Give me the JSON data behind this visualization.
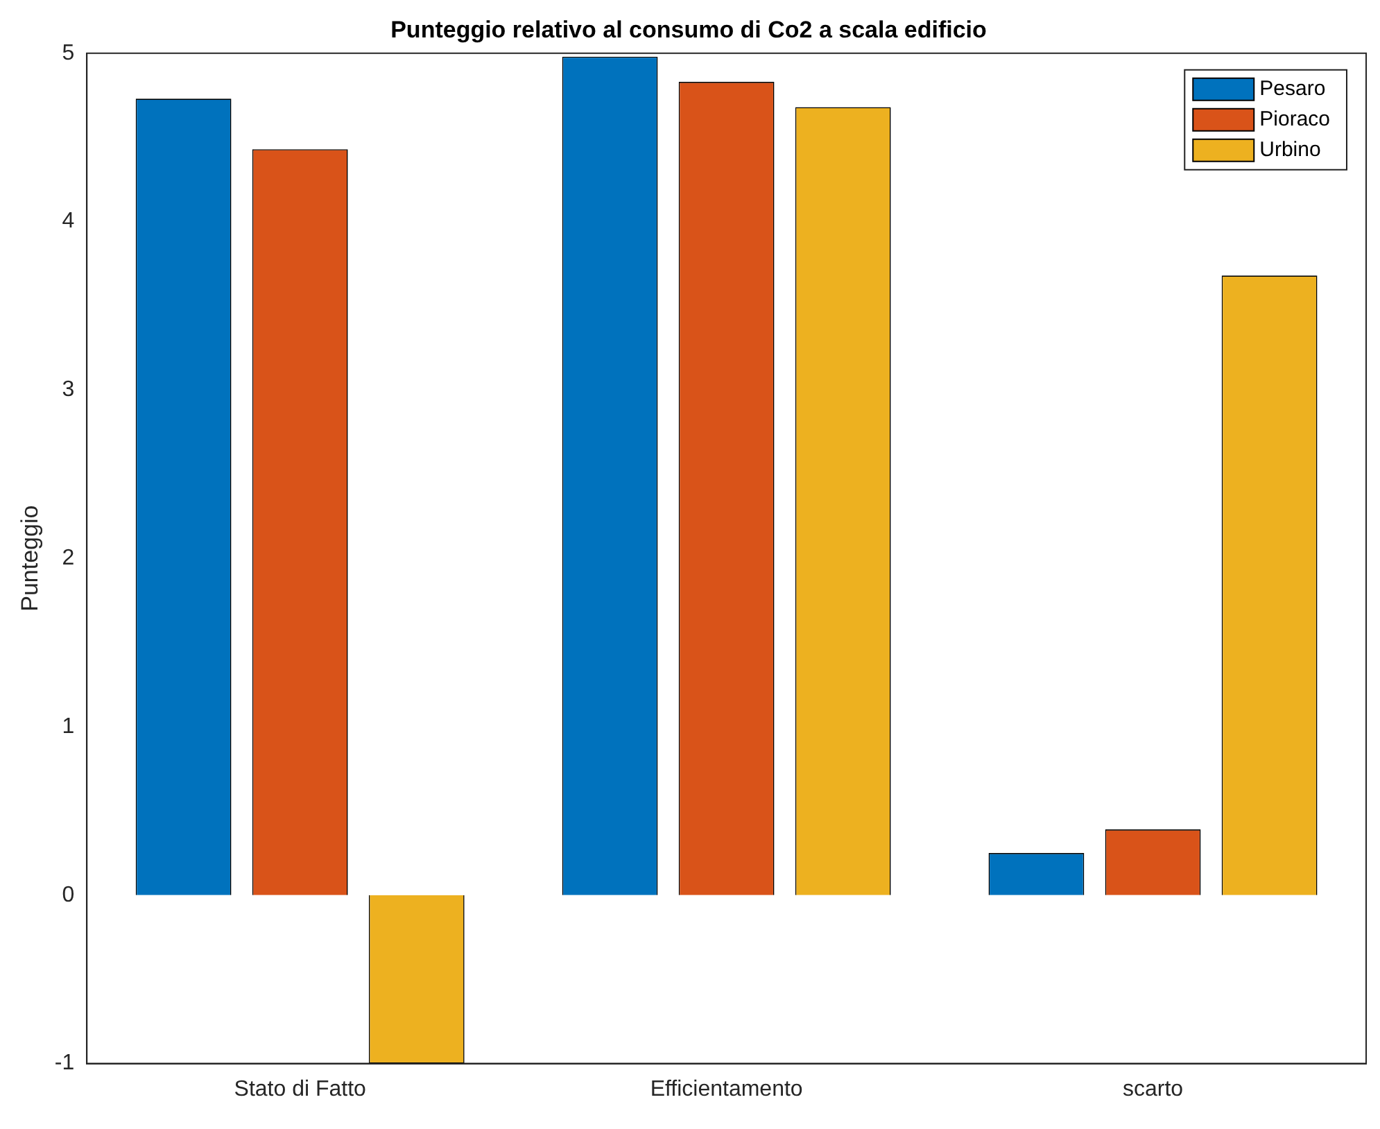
{
  "chart_data": {
    "type": "bar",
    "title": "Punteggio relativo al consumo di Co2 a scala edificio",
    "ylabel": "Punteggio",
    "categories": [
      "Stato di Fatto",
      "Efficientamento",
      "scarto"
    ],
    "series": [
      {
        "name": "Pesaro",
        "color": "#0072bd",
        "values": [
          4.73,
          4.98,
          0.25
        ]
      },
      {
        "name": "Pioraco",
        "color": "#d95319",
        "values": [
          4.43,
          4.83,
          0.39
        ]
      },
      {
        "name": "Urbino",
        "color": "#edb120",
        "values": [
          -1,
          4.68,
          3.68
        ]
      }
    ],
    "ylim": [
      -1,
      5
    ],
    "yticks": [
      -1,
      0,
      1,
      2,
      3,
      4,
      5
    ],
    "grid": false,
    "legend": "top right"
  }
}
